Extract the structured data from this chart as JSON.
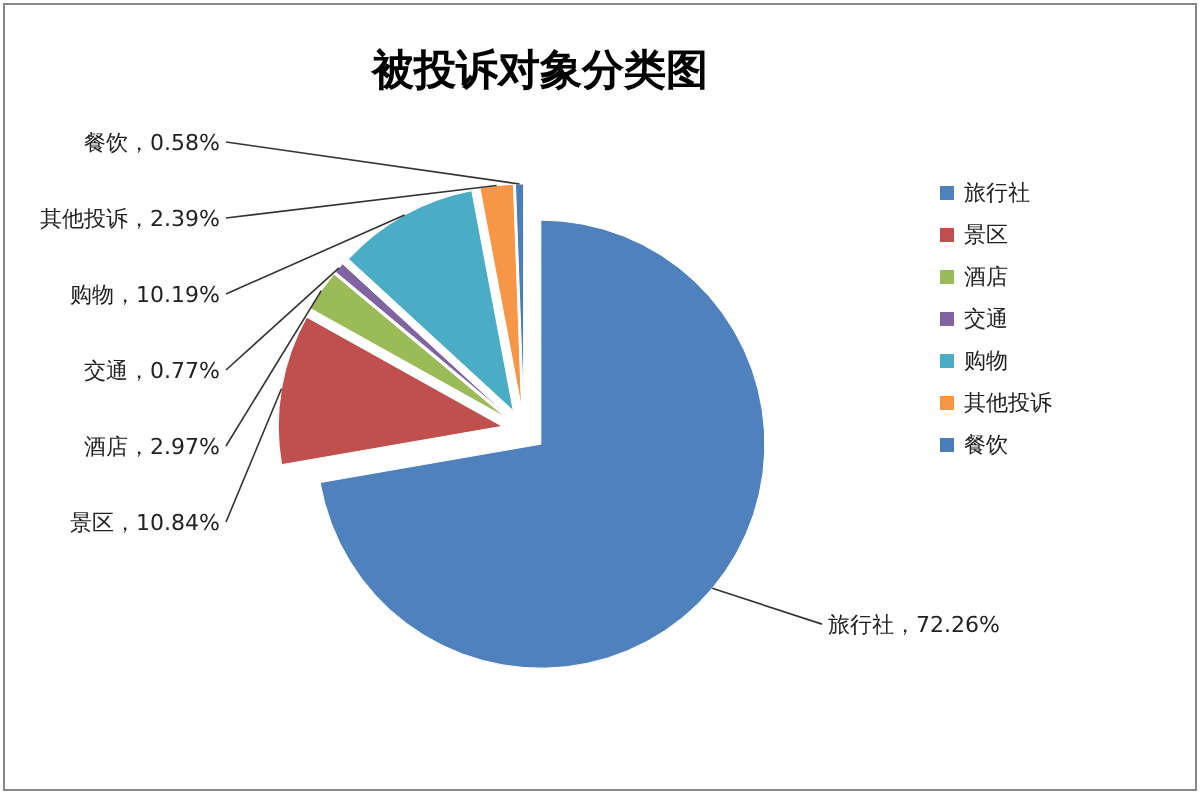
{
  "chart_data": {
    "type": "pie",
    "title": "被投诉对象分类图",
    "categories": [
      "旅行社",
      "景区",
      "酒店",
      "交通",
      "购物",
      "其他投诉",
      "餐饮"
    ],
    "values": [
      72.26,
      10.84,
      2.97,
      0.77,
      10.19,
      2.39,
      0.58
    ],
    "value_labels": [
      "旅行社，72.26%",
      "景区，10.84%",
      "酒店，2.97%",
      "交通，0.77%",
      "购物，10.19%",
      "其他投诉，2.39%",
      "餐饮，0.58%"
    ],
    "colors": [
      "#4f81bd",
      "#c0504d",
      "#9bbb59",
      "#8064a2",
      "#4bacc6",
      "#f79646",
      "#4a7ebb"
    ],
    "legend": "right"
  }
}
